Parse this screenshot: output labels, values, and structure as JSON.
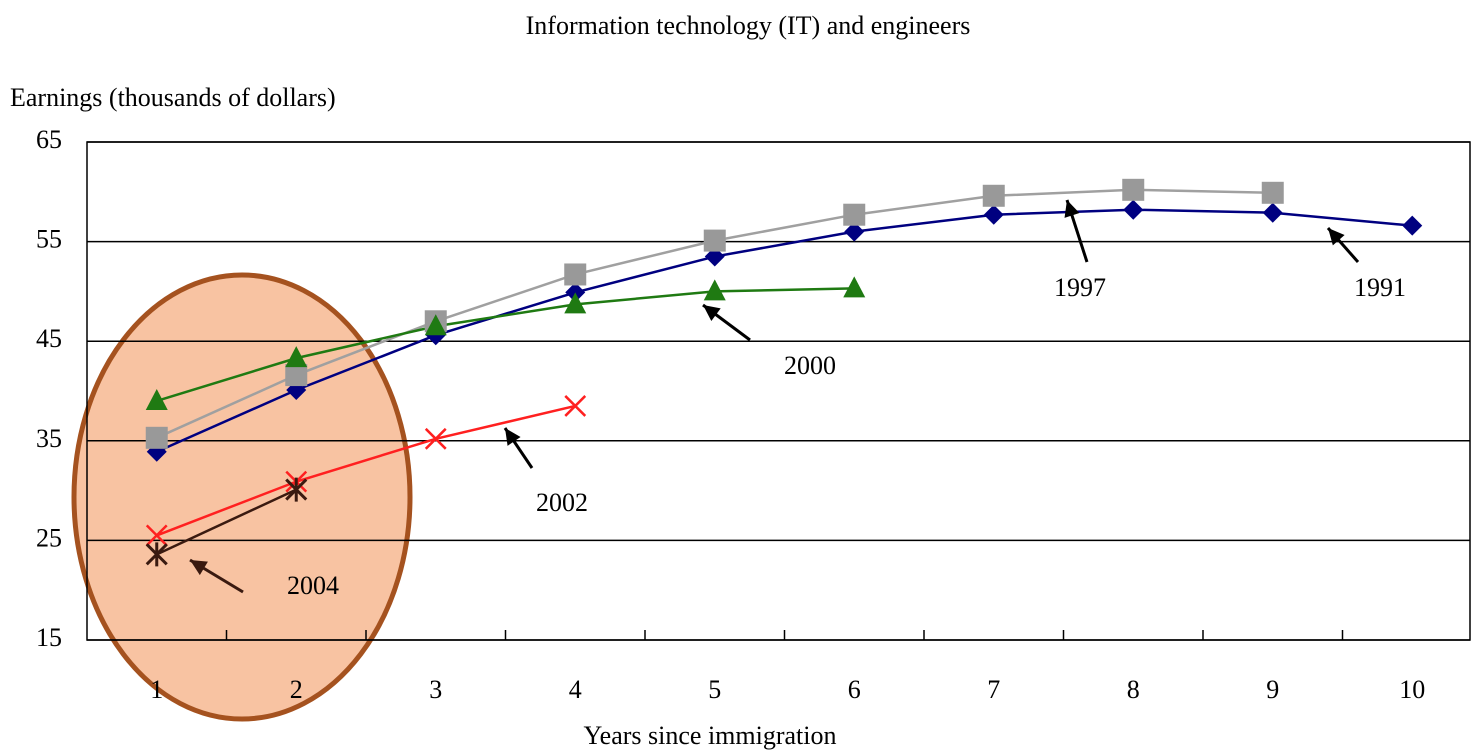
{
  "chart_data": {
    "type": "line",
    "title": "Information technology (IT) and engineers",
    "y_label": "Earnings (thousands of dollars)",
    "x_label": "Years since immigration",
    "categories": [
      1,
      2,
      3,
      4,
      5,
      6,
      7,
      8,
      9,
      10
    ],
    "ylim": [
      15,
      65
    ],
    "yticks": [
      15,
      25,
      35,
      45,
      55,
      65
    ],
    "grid": true,
    "series": [
      {
        "name": "1991",
        "color": "#000080",
        "marker": "diamond",
        "values": [
          33.9,
          40.1,
          45.6,
          49.9,
          53.5,
          56.0,
          57.7,
          58.2,
          57.9,
          56.6
        ]
      },
      {
        "name": "1997",
        "color": "#a0a0a0",
        "marker": "square",
        "values": [
          35.3,
          41.6,
          47.0,
          51.7,
          55.1,
          57.7,
          59.6,
          60.2,
          59.9,
          null
        ]
      },
      {
        "name": "2000",
        "color": "#1f7a12",
        "marker": "triangle",
        "values": [
          39.0,
          43.3,
          46.5,
          48.7,
          50.0,
          50.3,
          null,
          null,
          null,
          null
        ]
      },
      {
        "name": "2002",
        "color": "#ff2020",
        "marker": "x",
        "values": [
          25.5,
          30.9,
          35.2,
          38.5,
          null,
          null,
          null,
          null,
          null,
          null
        ]
      },
      {
        "name": "2004",
        "color": "#3a1a10",
        "marker": "star",
        "values": [
          23.6,
          30.1,
          null,
          null,
          null,
          null,
          null,
          null,
          null,
          null
        ]
      }
    ]
  }
}
